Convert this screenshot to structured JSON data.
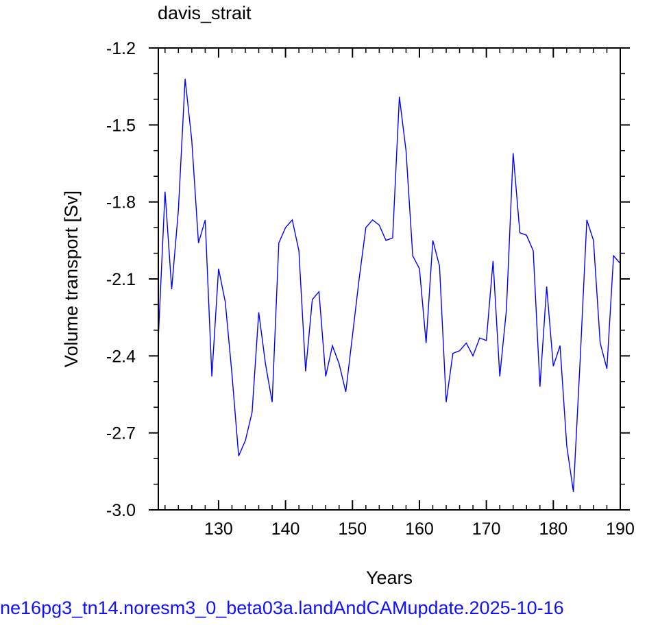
{
  "chart_data": {
    "type": "line",
    "title": "davis_strait",
    "xlabel": "Years",
    "ylabel": "Volume transport [Sv]",
    "xlim": [
      121,
      190
    ],
    "ylim": [
      -3.0,
      -1.2
    ],
    "x_ticks": [
      130,
      140,
      150,
      160,
      170,
      180,
      190
    ],
    "y_ticks": [
      -3.0,
      -2.7,
      -2.4,
      -2.1,
      -1.8,
      -1.5,
      -1.2
    ],
    "y_tick_labels": [
      "-3.0",
      "-2.7",
      "-2.4",
      "-2.1",
      "-1.8",
      "-1.5",
      "-1.2"
    ],
    "grid": false,
    "line_color": "#0000ff",
    "series": [
      {
        "x": [
          121,
          122,
          123,
          124,
          125,
          126,
          127,
          128,
          129,
          130,
          131,
          132,
          133,
          134,
          135,
          136,
          137,
          138,
          139,
          140,
          141,
          142,
          143,
          144,
          145,
          146,
          147,
          148,
          149,
          150,
          151,
          152,
          153,
          154,
          155,
          156,
          157,
          158,
          159,
          160,
          161,
          162,
          163,
          164,
          165,
          166,
          167,
          168,
          169,
          170,
          171,
          172,
          173,
          174,
          175,
          176,
          177,
          178,
          179,
          180,
          181,
          182,
          183,
          184,
          185,
          186,
          187,
          188,
          189,
          190
        ],
        "values": [
          -2.33,
          -1.76,
          -2.14,
          -1.83,
          -1.32,
          -1.56,
          -1.96,
          -1.87,
          -2.48,
          -2.06,
          -2.19,
          -2.47,
          -2.79,
          -2.73,
          -2.62,
          -2.23,
          -2.43,
          -2.58,
          -1.96,
          -1.9,
          -1.87,
          -1.99,
          -2.46,
          -2.18,
          -2.15,
          -2.48,
          -2.36,
          -2.43,
          -2.54,
          -2.32,
          -2.1,
          -1.9,
          -1.87,
          -1.89,
          -1.95,
          -1.94,
          -1.39,
          -1.6,
          -2.01,
          -2.06,
          -2.35,
          -1.95,
          -2.05,
          -2.58,
          -2.39,
          -2.38,
          -2.35,
          -2.4,
          -2.33,
          -2.34,
          -2.03,
          -2.48,
          -2.22,
          -1.61,
          -1.92,
          -1.93,
          -1.99,
          -2.52,
          -2.13,
          -2.44,
          -2.36,
          -2.75,
          -2.93,
          -2.42,
          -1.87,
          -1.95,
          -2.35,
          -2.45,
          -2.01,
          -2.04
        ]
      }
    ]
  },
  "footer": {
    "run_label": "ne16pg3_tn14.noresm3_0_beta03a.landAndCAMupdate.2025-10-16"
  }
}
